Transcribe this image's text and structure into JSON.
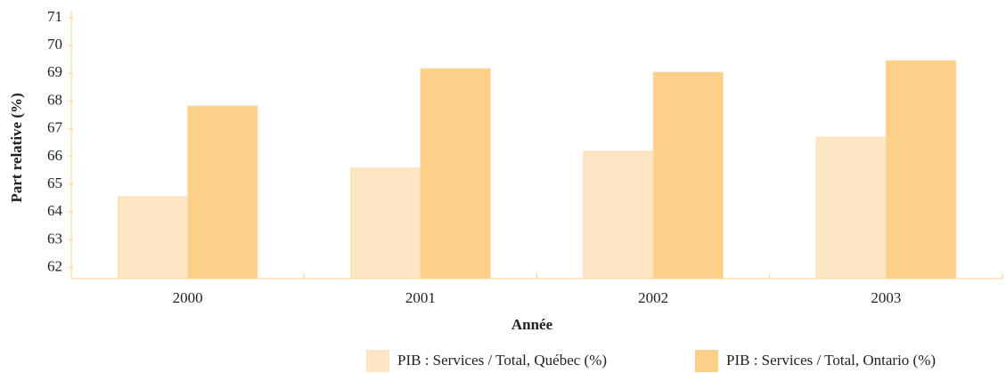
{
  "chart_data": {
    "type": "bar",
    "x_label": "Année",
    "y_label": "Part relative (%)",
    "categories": [
      "2000",
      "2001",
      "2002",
      "2003"
    ],
    "series": [
      {
        "name": "PIB : Services / Total, Québec (%)",
        "color": "#fde6c4",
        "values": [
          64.55,
          65.58,
          66.19,
          66.7
        ]
      },
      {
        "name": "PIB : Services / Total, Ontario (%)",
        "color": "#fdd08a",
        "values": [
          67.82,
          69.17,
          69.04,
          69.46
        ]
      }
    ],
    "ylim": [
      61.6,
      71
    ],
    "yticks": [
      62,
      63,
      64,
      65,
      66,
      67,
      68,
      69,
      70,
      71
    ],
    "grid": false
  }
}
